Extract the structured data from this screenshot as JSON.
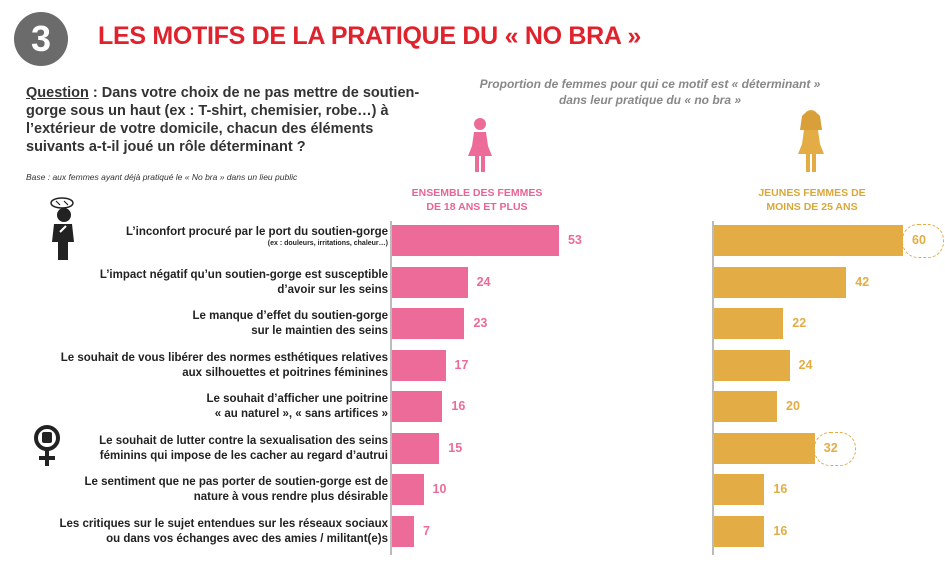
{
  "header": {
    "number": "3",
    "title": "LES MOTIFS DE LA PRATIQUE DU « NO BRA »"
  },
  "question": {
    "label": "Question",
    "text": " : Dans votre choix de ne pas mettre de soutien-gorge sous un haut (ex : T-shirt, chemisier, robe…) à l’extérieur de votre domicile, chacun des éléments suivants a-t-il joué un rôle déterminant ?",
    "base": "Base : aux femmes ayant déjà pratiqué le « No bra » dans un lieu public"
  },
  "subtitle": {
    "line1": "Proportion de femmes pour qui ce motif est « déterminant »",
    "line2": "dans leur pratique du « no bra »"
  },
  "colors": {
    "pink": "#ec6b98",
    "gold": "#e3ac45",
    "red": "#e0222d"
  },
  "chart_data": {
    "type": "bar",
    "orientation": "horizontal",
    "title": "Proportion de femmes pour qui ce motif est « déterminant » dans leur pratique du « no bra »",
    "categories": [
      {
        "line1": "L’inconfort procuré par le port du soutien-gorge",
        "line2": "",
        "note": "(ex : douleurs, irritations, chaleur…)"
      },
      {
        "line1": "L’impact négatif qu’un soutien-gorge est susceptible",
        "line2": "d’avoir sur les seins",
        "note": ""
      },
      {
        "line1": "Le manque d’effet du soutien-gorge",
        "line2": "sur le maintien des seins",
        "note": ""
      },
      {
        "line1": "Le souhait de vous libérer des normes esthétiques relatives",
        "line2": "aux silhouettes et poitrines féminines",
        "note": ""
      },
      {
        "line1": "Le souhait d’afficher une poitrine",
        "line2": "« au naturel », « sans artifices »",
        "note": ""
      },
      {
        "line1": "Le souhait de lutter contre la sexualisation des seins",
        "line2": "féminins qui impose de les cacher au regard d’autrui",
        "note": ""
      },
      {
        "line1": "Le sentiment que ne pas porter de soutien-gorge est de",
        "line2": "nature à vous rendre plus désirable",
        "note": ""
      },
      {
        "line1": "Les critiques sur le sujet entendues sur les réseaux sociaux",
        "line2": "ou dans vos échanges avec des amies / militant(e)s",
        "note": ""
      }
    ],
    "series": [
      {
        "name": "ENSEMBLE DES FEMMES DE 18 ANS ET PLUS",
        "name_line1": "ENSEMBLE DES FEMMES",
        "name_line2": "DE 18 ANS ET PLUS",
        "color": "#ec6b98",
        "values": [
          53,
          24,
          23,
          17,
          16,
          15,
          10,
          7
        ]
      },
      {
        "name": "JEUNES FEMMES DE MOINS DE 25 ANS",
        "name_line1": "JEUNES FEMMES DE",
        "name_line2": "MOINS DE 25 ANS",
        "color": "#e3ac45",
        "values": [
          60,
          42,
          22,
          24,
          20,
          32,
          16,
          16
        ],
        "highlighted": [
          0,
          5
        ]
      }
    ],
    "unit": "%"
  }
}
